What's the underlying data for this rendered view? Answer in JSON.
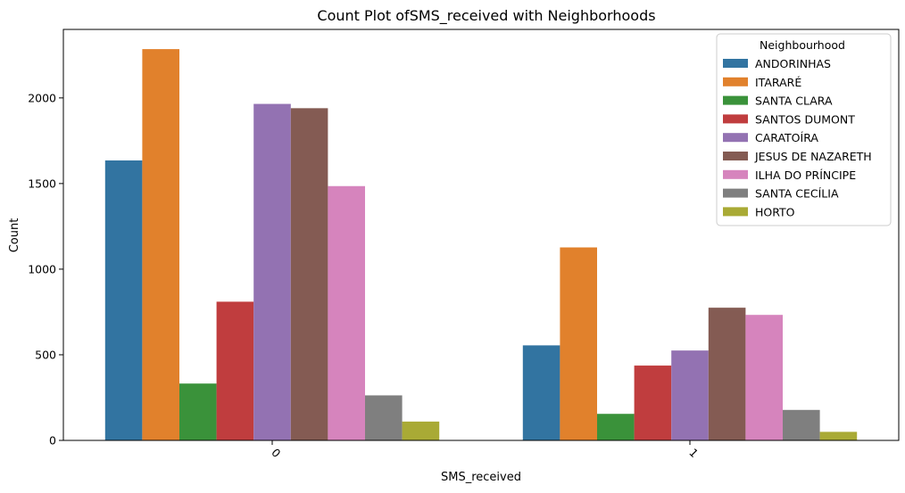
{
  "chart_data": {
    "type": "bar",
    "title": "Count Plot ofSMS_received with Neighborhoods",
    "xlabel": "SMS_received",
    "ylabel": "Count",
    "categories": [
      "0",
      "1"
    ],
    "ylim": [
      0,
      2400
    ],
    "yticks": [
      0,
      500,
      1000,
      1500,
      2000
    ],
    "ytick_labels": [
      "0",
      "500",
      "1000",
      "1500",
      "2000"
    ],
    "grid": false,
    "legend": {
      "title": "Neighbourhood",
      "placement": "top-right"
    },
    "series": [
      {
        "name": "ANDORINHAS",
        "color": "#3274a1",
        "values": [
          1635,
          555
        ]
      },
      {
        "name": "ITARARÉ",
        "color": "#e1812c",
        "values": [
          2285,
          1127
        ]
      },
      {
        "name": "SANTA CLARA",
        "color": "#3a923a",
        "values": [
          332,
          155
        ]
      },
      {
        "name": "SANTOS DUMONT",
        "color": "#c03d3e",
        "values": [
          810,
          437
        ]
      },
      {
        "name": "CARATOÍRA",
        "color": "#9372b2",
        "values": [
          1965,
          525
        ]
      },
      {
        "name": "JESUS DE NAZARETH",
        "color": "#845b53",
        "values": [
          1940,
          775
        ]
      },
      {
        "name": "ILHA DO PRÍNCIPE",
        "color": "#d684bd",
        "values": [
          1485,
          733
        ]
      },
      {
        "name": "SANTA CECÍLIA",
        "color": "#7f7f7f",
        "values": [
          263,
          178
        ]
      },
      {
        "name": "HORTO",
        "color": "#a9aa35",
        "values": [
          110,
          50
        ]
      }
    ]
  }
}
